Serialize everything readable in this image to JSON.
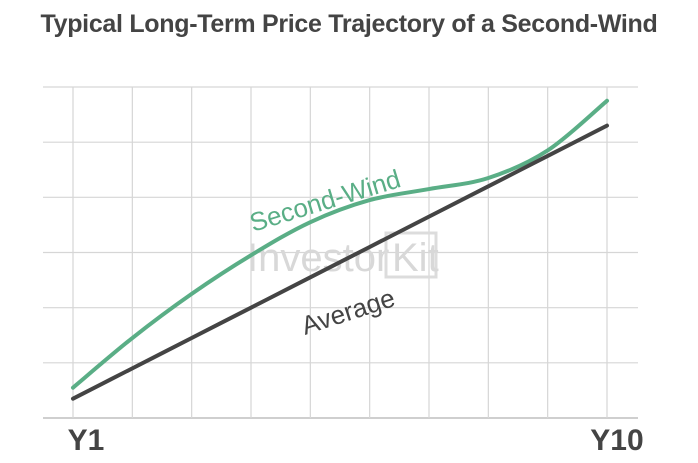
{
  "chart_data": {
    "type": "line",
    "title": "Typical Long-Term Price Trajectory of a Second-Wind",
    "xlabel": "",
    "ylabel": "",
    "x_tick_labels": [
      "Y1",
      "Y10"
    ],
    "x": [
      1,
      2,
      3,
      4,
      5,
      6,
      7,
      8,
      9,
      10
    ],
    "xlim": [
      1,
      10
    ],
    "ylim": [
      0,
      6
    ],
    "grid": true,
    "series": [
      {
        "name": "Second-Wind",
        "color": "#5aae86",
        "values": [
          0.55,
          1.45,
          2.25,
          2.95,
          3.55,
          3.95,
          4.15,
          4.35,
          4.85,
          5.75
        ]
      },
      {
        "name": "Average",
        "color": "#444444",
        "values": [
          0.35,
          0.9,
          1.45,
          2.0,
          2.55,
          3.1,
          3.65,
          4.2,
          4.75,
          5.3
        ]
      }
    ]
  },
  "watermark": "InvestorKit"
}
